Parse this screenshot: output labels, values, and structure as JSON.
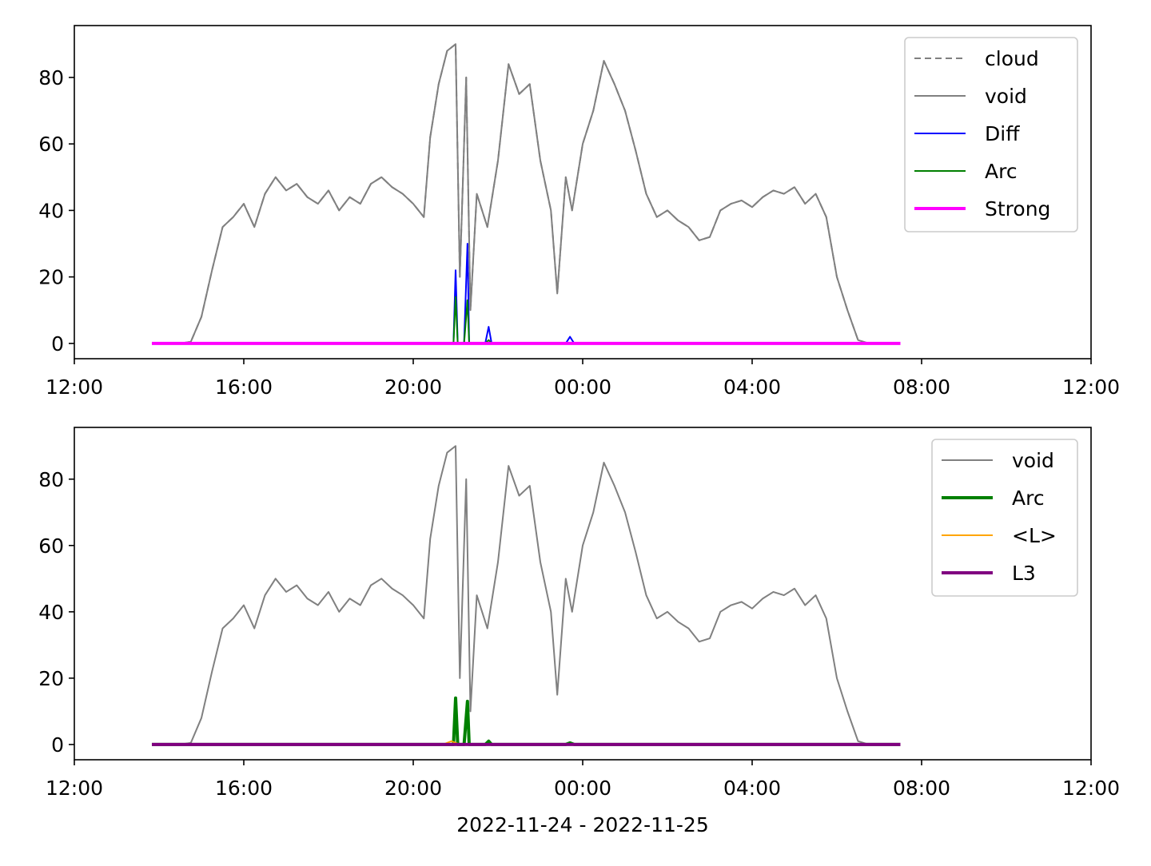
{
  "chart_data": [
    {
      "type": "line",
      "xlim": [
        12,
        36
      ],
      "ylim": [
        -4.6,
        95.6
      ],
      "xticks": [
        {
          "value": 12,
          "label": "12:00"
        },
        {
          "value": 16,
          "label": "16:00"
        },
        {
          "value": 20,
          "label": "20:00"
        },
        {
          "value": 24,
          "label": "00:00"
        },
        {
          "value": 28,
          "label": "04:00"
        },
        {
          "value": 32,
          "label": "08:00"
        },
        {
          "value": 36,
          "label": "12:00"
        }
      ],
      "yticks": [
        0,
        20,
        40,
        60,
        80
      ],
      "legend": "upper right",
      "series": [
        {
          "name": "cloud",
          "color": "#808080",
          "dash": true,
          "width": 2,
          "x": [
            13.83,
            14.0,
            14.25,
            14.5,
            14.75,
            15.0,
            15.25,
            15.5,
            15.75,
            16.0,
            16.25,
            16.5,
            16.75,
            17.0,
            17.25,
            17.5,
            17.75,
            18.0,
            18.25,
            18.5,
            18.75,
            19.0,
            19.25,
            19.5,
            19.75,
            20.0,
            20.25,
            20.4,
            20.6,
            20.8,
            21.0,
            21.1,
            21.25,
            21.35,
            21.5,
            21.75,
            22.0,
            22.25,
            22.5,
            22.75,
            23.0,
            23.25,
            23.4,
            23.6,
            23.75,
            24.0,
            24.25,
            24.5,
            24.75,
            25.0,
            25.25,
            25.5,
            25.75,
            26.0,
            26.25,
            26.5,
            26.75,
            27.0,
            27.25,
            27.5,
            27.75,
            28.0,
            28.25,
            28.5,
            28.75,
            29.0,
            29.25,
            29.5,
            29.75,
            30.0,
            30.25,
            30.5,
            30.75,
            31.0,
            31.25,
            31.5
          ],
          "values": [
            0,
            0,
            0,
            0,
            0.5,
            8,
            22,
            35,
            38,
            42,
            35,
            45,
            50,
            46,
            48,
            44,
            42,
            46,
            40,
            44,
            42,
            48,
            50,
            47,
            45,
            42,
            38,
            62,
            78,
            88,
            90,
            20,
            80,
            10,
            45,
            35,
            55,
            84,
            75,
            78,
            55,
            40,
            15,
            50,
            40,
            60,
            70,
            85,
            78,
            70,
            58,
            45,
            38,
            40,
            37,
            35,
            31,
            32,
            40,
            42,
            43,
            41,
            44,
            46,
            45,
            47,
            42,
            45,
            38,
            20,
            10,
            1,
            0,
            0,
            0,
            0
          ]
        },
        {
          "name": "void",
          "color": "#808080",
          "width": 2,
          "x": [
            13.83,
            14.0,
            14.25,
            14.5,
            14.75,
            15.0,
            15.25,
            15.5,
            15.75,
            16.0,
            16.25,
            16.5,
            16.75,
            17.0,
            17.25,
            17.5,
            17.75,
            18.0,
            18.25,
            18.5,
            18.75,
            19.0,
            19.25,
            19.5,
            19.75,
            20.0,
            20.25,
            20.4,
            20.6,
            20.8,
            21.0,
            21.1,
            21.25,
            21.35,
            21.5,
            21.75,
            22.0,
            22.25,
            22.5,
            22.75,
            23.0,
            23.25,
            23.4,
            23.6,
            23.75,
            24.0,
            24.25,
            24.5,
            24.75,
            25.0,
            25.25,
            25.5,
            25.75,
            26.0,
            26.25,
            26.5,
            26.75,
            27.0,
            27.25,
            27.5,
            27.75,
            28.0,
            28.25,
            28.5,
            28.75,
            29.0,
            29.25,
            29.5,
            29.75,
            30.0,
            30.25,
            30.5,
            30.75,
            31.0,
            31.25,
            31.5
          ],
          "values": [
            0,
            0,
            0,
            0,
            0.5,
            8,
            22,
            35,
            38,
            42,
            35,
            45,
            50,
            46,
            48,
            44,
            42,
            46,
            40,
            44,
            42,
            48,
            50,
            47,
            45,
            42,
            38,
            62,
            78,
            88,
            90,
            20,
            80,
            10,
            45,
            35,
            55,
            84,
            75,
            78,
            55,
            40,
            15,
            50,
            40,
            60,
            70,
            85,
            78,
            70,
            58,
            45,
            38,
            40,
            37,
            35,
            31,
            32,
            40,
            42,
            43,
            41,
            44,
            46,
            45,
            47,
            42,
            45,
            38,
            20,
            10,
            1,
            0,
            0,
            0,
            0
          ]
        },
        {
          "name": "Diff",
          "color": "#0000ff",
          "width": 2,
          "x": [
            13.83,
            20.8,
            20.95,
            21.0,
            21.05,
            21.2,
            21.28,
            21.32,
            21.36,
            21.7,
            21.78,
            21.85,
            23.6,
            23.7,
            23.8,
            31.5
          ],
          "values": [
            0,
            0,
            0,
            22,
            0,
            0,
            30,
            0,
            0,
            0,
            5,
            0,
            0,
            2,
            0,
            0
          ]
        },
        {
          "name": "Arc",
          "color": "#008000",
          "width": 2,
          "x": [
            13.83,
            20.8,
            20.95,
            21.0,
            21.05,
            21.2,
            21.28,
            21.32,
            21.36,
            21.7,
            21.78,
            21.85,
            31.5
          ],
          "values": [
            0,
            0,
            0,
            14,
            0,
            0,
            13,
            0,
            0,
            0,
            1,
            0,
            0
          ]
        },
        {
          "name": "Strong",
          "color": "#ff00ff",
          "width": 4,
          "x": [
            13.83,
            31.5
          ],
          "values": [
            0,
            0
          ]
        }
      ]
    },
    {
      "type": "line",
      "xlim": [
        12,
        36
      ],
      "ylim": [
        -4.6,
        95.6
      ],
      "xticks": [
        {
          "value": 12,
          "label": "12:00"
        },
        {
          "value": 16,
          "label": "16:00"
        },
        {
          "value": 20,
          "label": "20:00"
        },
        {
          "value": 24,
          "label": "00:00"
        },
        {
          "value": 28,
          "label": "04:00"
        },
        {
          "value": 32,
          "label": "08:00"
        },
        {
          "value": 36,
          "label": "12:00"
        }
      ],
      "yticks": [
        0,
        20,
        40,
        60,
        80
      ],
      "xlabel": "2022-11-24 - 2022-11-25",
      "legend": "upper right",
      "series": [
        {
          "name": "void",
          "color": "#808080",
          "width": 2,
          "x": [
            13.83,
            14.0,
            14.25,
            14.5,
            14.75,
            15.0,
            15.25,
            15.5,
            15.75,
            16.0,
            16.25,
            16.5,
            16.75,
            17.0,
            17.25,
            17.5,
            17.75,
            18.0,
            18.25,
            18.5,
            18.75,
            19.0,
            19.25,
            19.5,
            19.75,
            20.0,
            20.25,
            20.4,
            20.6,
            20.8,
            21.0,
            21.1,
            21.25,
            21.35,
            21.5,
            21.75,
            22.0,
            22.25,
            22.5,
            22.75,
            23.0,
            23.25,
            23.4,
            23.6,
            23.75,
            24.0,
            24.25,
            24.5,
            24.75,
            25.0,
            25.25,
            25.5,
            25.75,
            26.0,
            26.25,
            26.5,
            26.75,
            27.0,
            27.25,
            27.5,
            27.75,
            28.0,
            28.25,
            28.5,
            28.75,
            29.0,
            29.25,
            29.5,
            29.75,
            30.0,
            30.25,
            30.5,
            30.75,
            31.0,
            31.25,
            31.5
          ],
          "values": [
            0,
            0,
            0,
            0,
            0.5,
            8,
            22,
            35,
            38,
            42,
            35,
            45,
            50,
            46,
            48,
            44,
            42,
            46,
            40,
            44,
            42,
            48,
            50,
            47,
            45,
            42,
            38,
            62,
            78,
            88,
            90,
            20,
            80,
            10,
            45,
            35,
            55,
            84,
            75,
            78,
            55,
            40,
            15,
            50,
            40,
            60,
            70,
            85,
            78,
            70,
            58,
            45,
            38,
            40,
            37,
            35,
            31,
            32,
            40,
            42,
            43,
            41,
            44,
            46,
            45,
            47,
            42,
            45,
            38,
            20,
            10,
            1,
            0,
            0,
            0,
            0
          ]
        },
        {
          "name": "Arc",
          "color": "#008000",
          "width": 4,
          "x": [
            13.83,
            20.8,
            20.95,
            21.0,
            21.05,
            21.2,
            21.28,
            21.32,
            21.36,
            21.7,
            21.78,
            21.85,
            23.6,
            23.7,
            23.8,
            31.5
          ],
          "values": [
            0,
            0,
            0,
            14,
            0,
            0,
            13,
            0,
            0,
            0,
            1,
            0,
            0,
            0.5,
            0,
            0
          ]
        },
        {
          "name": "<L>",
          "color": "#ffa500",
          "width": 2,
          "x": [
            13.83,
            20.7,
            20.9,
            21.1,
            31.5
          ],
          "values": [
            0,
            0,
            1,
            0,
            0
          ]
        },
        {
          "name": "L3",
          "color": "#800080",
          "width": 4,
          "x": [
            13.83,
            31.5
          ],
          "values": [
            0,
            0
          ]
        }
      ]
    }
  ]
}
